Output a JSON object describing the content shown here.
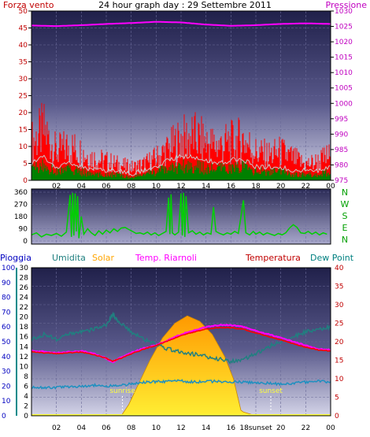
{
  "chart_data": [
    {
      "type": "line",
      "title": "24 hour graph day : 29 Settembre 2011",
      "left_label": "Forza vento",
      "right_label": "Pressione",
      "colors": {
        "gust": "#ff0000",
        "average": "#008000",
        "average_line": "#c8c8c8",
        "pressure": "#ff00ff",
        "left_axis": "#c00000",
        "right_axis": "#c000c0"
      },
      "grid": true,
      "x": {
        "range": [
          0,
          24
        ],
        "ticks": [
          "02",
          "04",
          "06",
          "08",
          "10",
          "12",
          "14",
          "16",
          "18",
          "20",
          "22",
          "00"
        ]
      },
      "y_left": {
        "range": [
          0,
          50
        ],
        "ticks": [
          "0",
          "5",
          "10",
          "15",
          "20",
          "25",
          "30",
          "35",
          "40",
          "45",
          "50"
        ]
      },
      "y_right": {
        "range": [
          975,
          1030
        ],
        "ticks": [
          "975",
          "980",
          "985",
          "990",
          "995",
          "1000",
          "1005",
          "1010",
          "1015",
          "1020",
          "1025",
          "1030"
        ]
      },
      "series": [
        {
          "key": "gust",
          "axis": "left",
          "x": [
            0,
            1,
            2,
            3,
            4,
            5,
            6,
            7,
            8,
            9,
            10,
            11,
            12,
            13,
            14,
            15,
            16,
            17,
            18,
            19,
            20,
            21,
            22,
            23,
            24
          ],
          "values": [
            12,
            16,
            9,
            11,
            9,
            7,
            6,
            5,
            4,
            5,
            7,
            10,
            13,
            14,
            12,
            11,
            12,
            13,
            9,
            8,
            9,
            7,
            5,
            6,
            8
          ]
        },
        {
          "key": "average",
          "axis": "left",
          "x": [
            0,
            1,
            2,
            3,
            4,
            5,
            6,
            7,
            8,
            9,
            10,
            11,
            12,
            13,
            14,
            15,
            16,
            17,
            18,
            19,
            20,
            21,
            22,
            23,
            24
          ],
          "values": [
            4,
            5,
            3,
            4,
            3,
            2,
            2,
            2,
            1,
            2,
            3,
            4,
            5,
            5,
            4,
            4,
            4,
            5,
            3,
            3,
            3,
            2,
            2,
            2,
            3
          ]
        },
        {
          "key": "average_line",
          "axis": "left",
          "x": [
            0,
            1,
            2,
            3,
            4,
            5,
            6,
            7,
            8,
            9,
            10,
            11,
            12,
            13,
            14,
            15,
            16,
            17,
            18,
            19,
            20,
            21,
            22,
            23,
            24
          ],
          "values": [
            5,
            7,
            4,
            5,
            4,
            3,
            3,
            3,
            2,
            3,
            4,
            6,
            7,
            7,
            6,
            5,
            6,
            6,
            4,
            4,
            4,
            3,
            3,
            3,
            4
          ]
        },
        {
          "key": "pressure",
          "axis": "right",
          "x": [
            0,
            2,
            4,
            6,
            8,
            10,
            12,
            14,
            16,
            18,
            20,
            22,
            24
          ],
          "values": [
            1025.3,
            1025.1,
            1025.4,
            1025.8,
            1026.1,
            1026.5,
            1026.3,
            1025.6,
            1025.2,
            1025.4,
            1025.8,
            1026.0,
            1025.8
          ]
        }
      ]
    },
    {
      "type": "scatter",
      "left_ticks": [
        "0",
        "90",
        "180",
        "270",
        "360"
      ],
      "compass": [
        "N",
        "W",
        "S",
        "E",
        "N"
      ],
      "y_range": [
        0,
        360
      ],
      "x_range": [
        0,
        24
      ],
      "color": "#00d000",
      "points": [
        [
          0.0,
          45
        ],
        [
          0.4,
          60
        ],
        [
          0.8,
          30
        ],
        [
          1.2,
          50
        ],
        [
          1.6,
          40
        ],
        [
          2.0,
          55
        ],
        [
          2.4,
          35
        ],
        [
          2.8,
          65
        ],
        [
          3.1,
          340
        ],
        [
          3.2,
          30
        ],
        [
          3.3,
          355
        ],
        [
          3.4,
          40
        ],
        [
          3.5,
          350
        ],
        [
          3.6,
          70
        ],
        [
          3.7,
          330
        ],
        [
          3.8,
          20
        ],
        [
          4.0,
          180
        ],
        [
          4.2,
          50
        ],
        [
          4.5,
          90
        ],
        [
          4.8,
          60
        ],
        [
          5.1,
          40
        ],
        [
          5.4,
          75
        ],
        [
          5.7,
          50
        ],
        [
          6.0,
          80
        ],
        [
          6.3,
          60
        ],
        [
          6.6,
          90
        ],
        [
          6.9,
          70
        ],
        [
          7.2,
          95
        ],
        [
          7.5,
          100
        ],
        [
          7.8,
          85
        ],
        [
          8.1,
          70
        ],
        [
          8.4,
          55
        ],
        [
          8.7,
          60
        ],
        [
          9.0,
          50
        ],
        [
          9.3,
          65
        ],
        [
          9.6,
          45
        ],
        [
          9.9,
          60
        ],
        [
          10.2,
          40
        ],
        [
          10.5,
          55
        ],
        [
          10.8,
          70
        ],
        [
          11.0,
          320
        ],
        [
          11.1,
          50
        ],
        [
          11.2,
          345
        ],
        [
          11.3,
          60
        ],
        [
          11.5,
          45
        ],
        [
          11.8,
          65
        ],
        [
          12.0,
          350
        ],
        [
          12.1,
          40
        ],
        [
          12.2,
          355
        ],
        [
          12.3,
          30
        ],
        [
          12.4,
          330
        ],
        [
          12.6,
          60
        ],
        [
          12.9,
          75
        ],
        [
          13.2,
          50
        ],
        [
          13.5,
          65
        ],
        [
          13.8,
          45
        ],
        [
          14.1,
          60
        ],
        [
          14.4,
          50
        ],
        [
          14.6,
          250
        ],
        [
          14.8,
          70
        ],
        [
          15.1,
          55
        ],
        [
          15.4,
          45
        ],
        [
          15.7,
          60
        ],
        [
          16.0,
          50
        ],
        [
          16.3,
          70
        ],
        [
          16.6,
          55
        ],
        [
          17.0,
          300
        ],
        [
          17.2,
          60
        ],
        [
          17.5,
          45
        ],
        [
          17.8,
          70
        ],
        [
          18.0,
          50
        ],
        [
          18.3,
          65
        ],
        [
          18.6,
          45
        ],
        [
          18.9,
          60
        ],
        [
          19.2,
          50
        ],
        [
          19.5,
          40
        ],
        [
          19.8,
          55
        ],
        [
          20.1,
          45
        ],
        [
          20.4,
          60
        ],
        [
          20.7,
          95
        ],
        [
          21.0,
          120
        ],
        [
          21.3,
          100
        ],
        [
          21.6,
          60
        ],
        [
          21.9,
          55
        ],
        [
          22.2,
          70
        ],
        [
          22.5,
          50
        ],
        [
          22.8,
          65
        ],
        [
          23.1,
          45
        ],
        [
          23.4,
          60
        ],
        [
          23.7,
          50
        ]
      ]
    },
    {
      "type": "line",
      "labels": {
        "rain": "Pioggia",
        "humidity": "Umidita",
        "solar": "Solar",
        "app_temp": "Temp. Riarnoli",
        "temperature": "Temperatura",
        "dew_point": "Dew Point"
      },
      "colors": {
        "rain": "#008b8b",
        "humidity": "#208080",
        "solar": "#ffa500",
        "app_temp": "#ff00ff",
        "temperature": "#ff0000",
        "dew_point": "#1e90c0"
      },
      "annotations": [
        "sunrise",
        "sunset"
      ],
      "sunset_tick": "18sunset",
      "sunrise_hour": 7.3,
      "sunset_hour": 19.2,
      "x": {
        "range": [
          0,
          24
        ],
        "ticks": [
          "02",
          "04",
          "06",
          "08",
          "10",
          "12",
          "14",
          "16",
          "18",
          "20",
          "22",
          "00"
        ]
      },
      "y_rain": {
        "range": [
          0,
          100
        ],
        "ticks": [
          "0",
          "10",
          "20",
          "30",
          "40",
          "50",
          "60",
          "70",
          "80",
          "90",
          "100"
        ]
      },
      "y_humidity": {
        "range": [
          0,
          30
        ],
        "ticks": [
          "0",
          "2",
          "4",
          "6",
          "8",
          "10",
          "12",
          "14",
          "16",
          "18",
          "20",
          "22",
          "24",
          "26",
          "28",
          "30"
        ]
      },
      "y_temp": {
        "range": [
          0,
          40
        ],
        "ticks": [
          "0",
          "5",
          "10",
          "15",
          "20",
          "25",
          "30",
          "35",
          "40"
        ]
      },
      "grid": true,
      "series": [
        {
          "key": "humidity",
          "axis": "humidity",
          "x": [
            0,
            1,
            2,
            3,
            4,
            5,
            6,
            6.5,
            7,
            8,
            9,
            10,
            11,
            12,
            13,
            14,
            15,
            16,
            17,
            18,
            19,
            20,
            21,
            22,
            23,
            24
          ],
          "values": [
            15.5,
            16.5,
            15.5,
            16.5,
            17.0,
            17.5,
            18.5,
            20.5,
            19.0,
            17.0,
            15.5,
            14.5,
            13.5,
            13.0,
            12.5,
            12.0,
            11.5,
            11.0,
            11.5,
            12.5,
            14.0,
            15.0,
            16.0,
            17.0,
            17.5,
            18.0
          ]
        },
        {
          "key": "solar",
          "axis": "temp",
          "x": [
            7.2,
            7.8,
            8.5,
            9.5,
            10.5,
            11.5,
            12.5,
            13.5,
            14.5,
            15.5,
            16.2,
            16.8,
            17.0,
            18.0
          ],
          "values": [
            0,
            3,
            8,
            15,
            21,
            25,
            27,
            25.5,
            22,
            16,
            10,
            1.5,
            1,
            0
          ]
        },
        {
          "key": "app_temp",
          "axis": "temp",
          "x": [
            0,
            1,
            2,
            3,
            4,
            5,
            6,
            6.5,
            7,
            8,
            9,
            10,
            11,
            12,
            13,
            14,
            15,
            16,
            17,
            18,
            19,
            20,
            21,
            22,
            23,
            24
          ],
          "values": [
            17.5,
            17.3,
            17.0,
            17.2,
            17.5,
            16.8,
            15.5,
            14.5,
            15.5,
            17.0,
            18.2,
            19.0,
            20.5,
            22.0,
            23.0,
            24.0,
            24.5,
            24.5,
            24.0,
            23.0,
            22.0,
            21.0,
            20.0,
            19.0,
            18.0,
            17.8
          ]
        },
        {
          "key": "temperature",
          "axis": "temp",
          "x": [
            0,
            1,
            2,
            3,
            4,
            5,
            6,
            6.5,
            7,
            8,
            9,
            10,
            11,
            12,
            13,
            14,
            15,
            16,
            17,
            18,
            19,
            20,
            21,
            22,
            23,
            24
          ],
          "values": [
            17.3,
            17.0,
            16.8,
            17.0,
            17.2,
            16.5,
            15.5,
            14.7,
            15.3,
            16.7,
            18.0,
            19.0,
            20.3,
            21.7,
            22.6,
            23.4,
            23.8,
            23.8,
            23.4,
            22.4,
            21.4,
            20.5,
            19.5,
            18.5,
            17.8,
            17.5
          ]
        },
        {
          "key": "dew_point",
          "axis": "temp",
          "x": [
            0,
            1,
            2,
            3,
            4,
            5,
            6,
            7,
            8,
            9,
            10,
            11,
            12,
            13,
            14,
            15,
            16,
            17,
            18,
            19,
            20,
            21,
            22,
            23,
            24
          ],
          "values": [
            7.8,
            7.6,
            7.7,
            7.9,
            8.0,
            8.2,
            8.0,
            8.2,
            8.6,
            9.0,
            9.2,
            9.3,
            9.4,
            9.1,
            9.2,
            9.3,
            9.2,
            9.1,
            8.9,
            8.8,
            8.6,
            8.8,
            9.1,
            9.3,
            9.2
          ]
        },
        {
          "key": "rain",
          "axis": "rain",
          "x": [
            0,
            24
          ],
          "values": [
            0,
            0
          ]
        }
      ]
    }
  ]
}
